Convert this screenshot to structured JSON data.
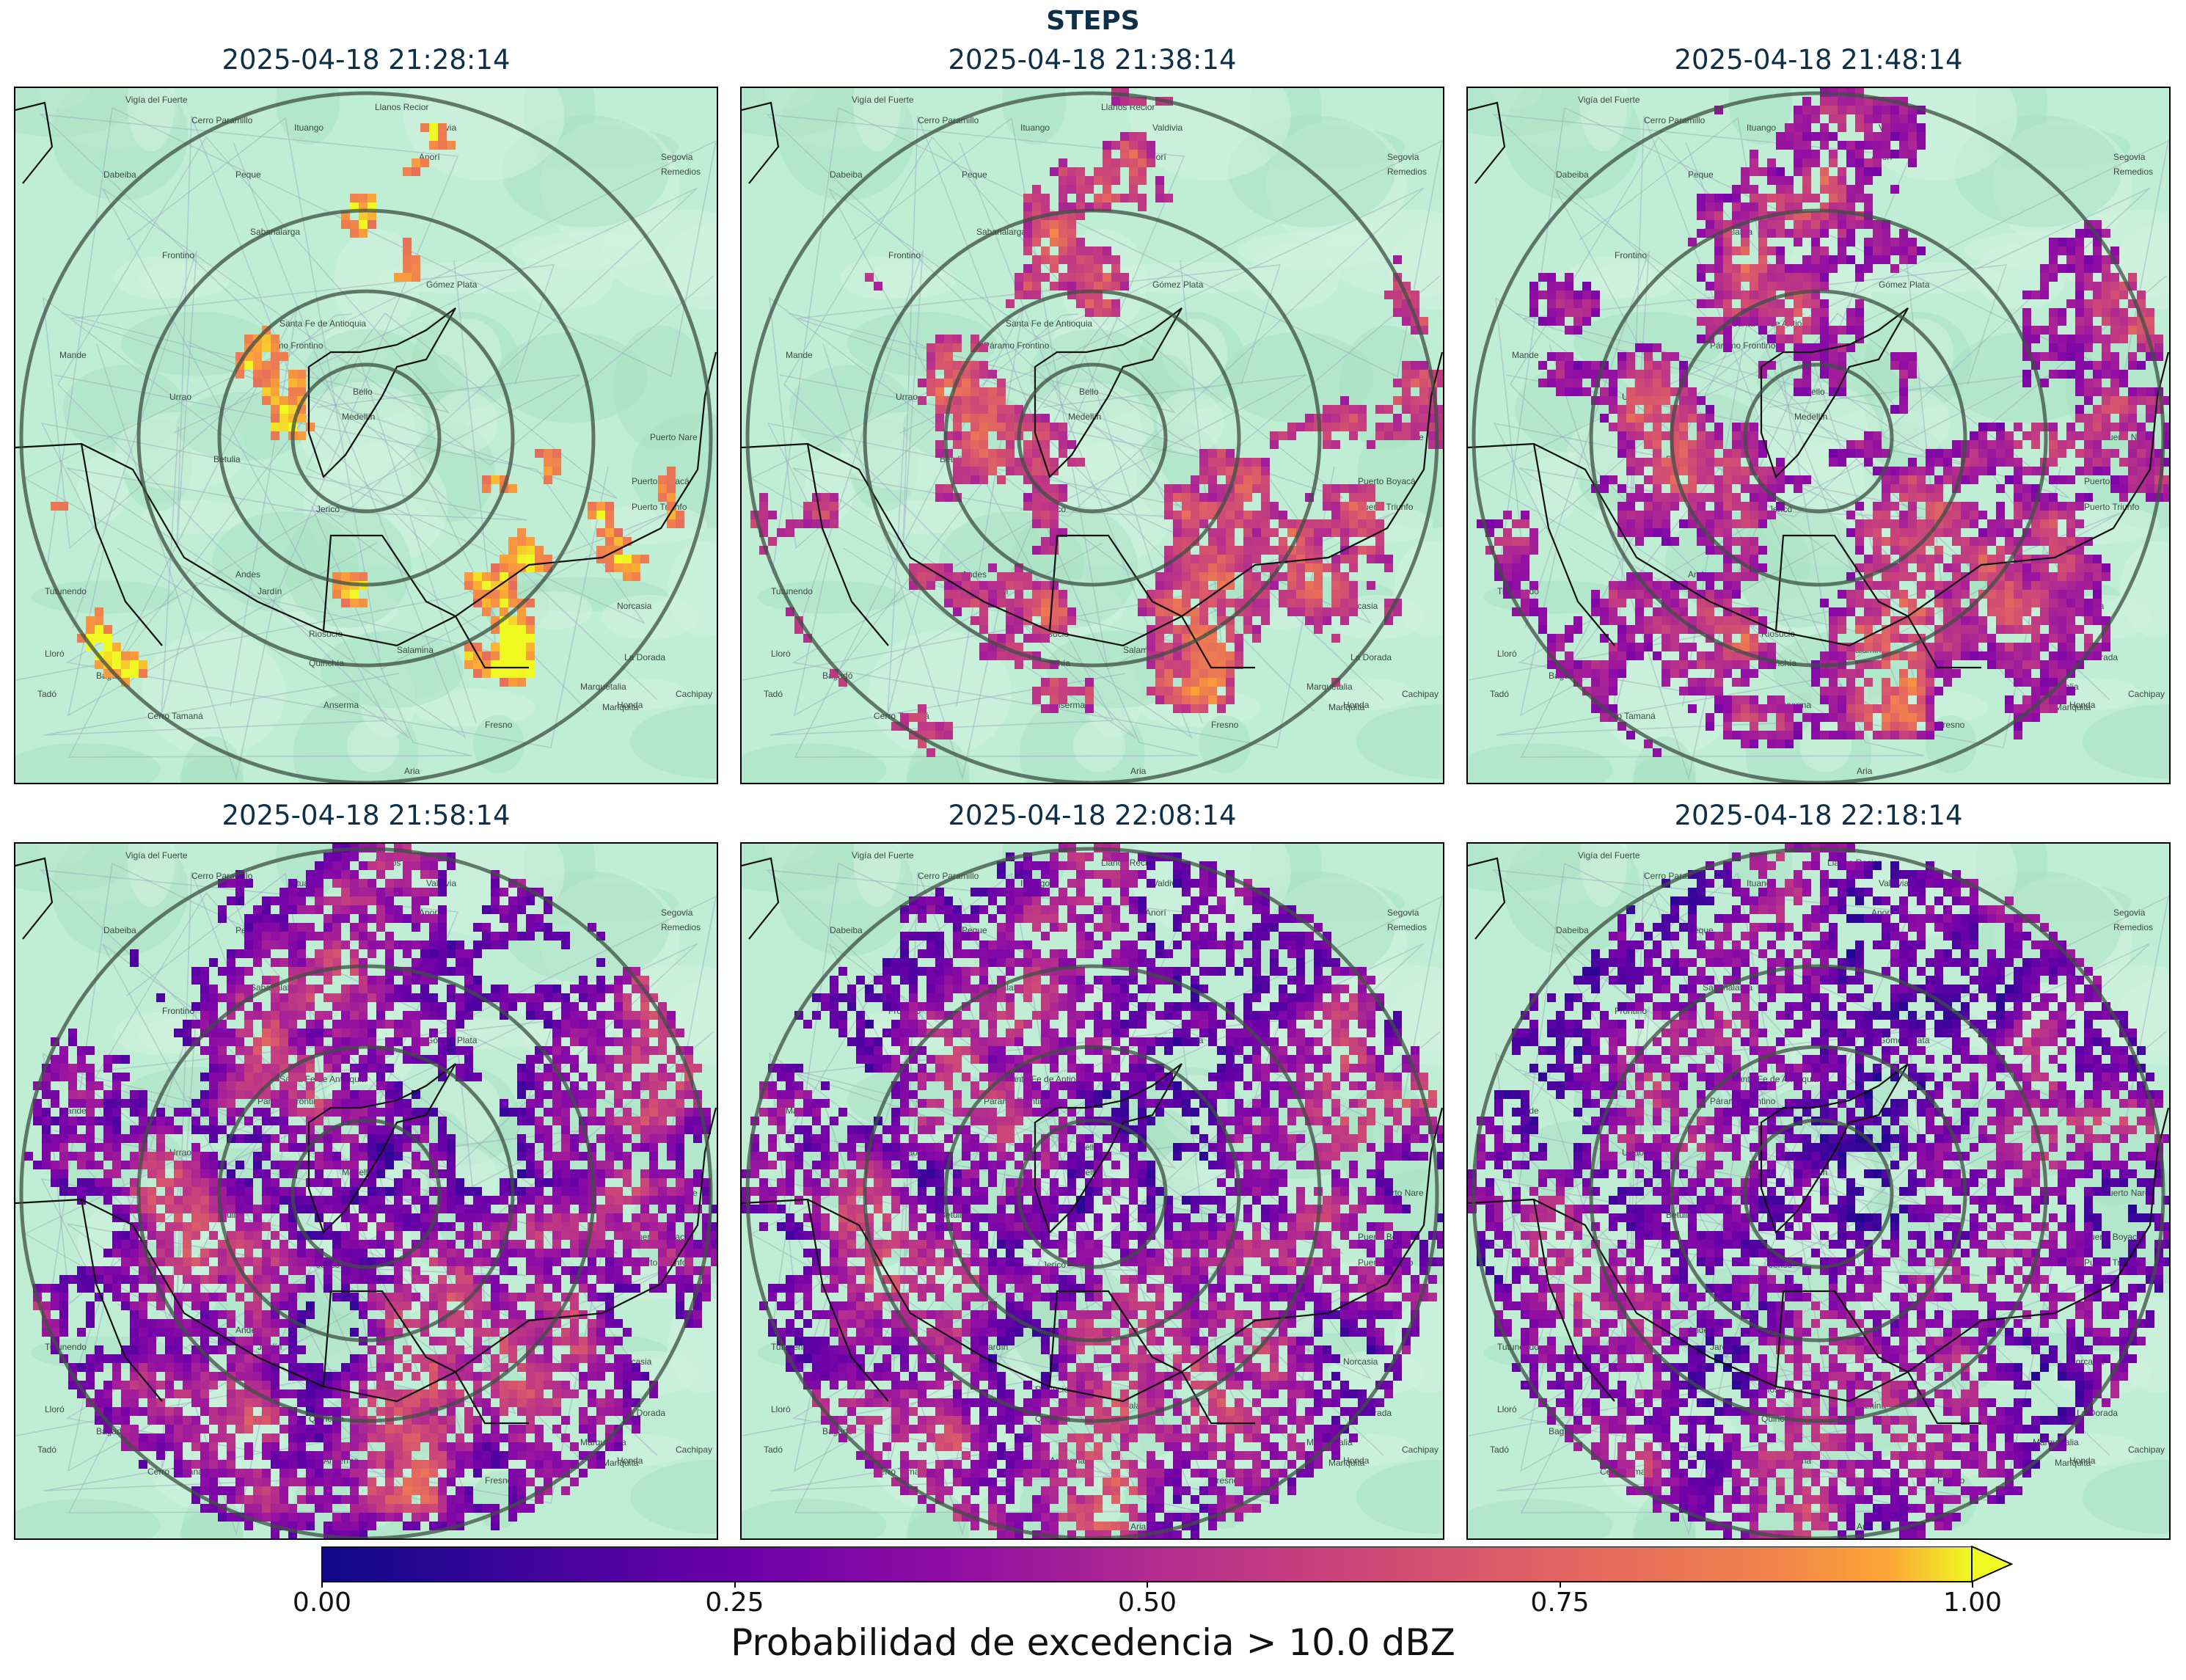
{
  "figure": {
    "suptitle": "STEPS"
  },
  "colorbar": {
    "label": "Probabilidad de excedencia > 10.0 dBZ",
    "ticks": [
      "0.00",
      "0.25",
      "0.50",
      "0.75",
      "1.00"
    ],
    "range": [
      0,
      1
    ],
    "colormap": "plasma",
    "extend": "max"
  },
  "map": {
    "place_labels": [
      "Vigía del Fuerte",
      "Llanos Recior",
      "Valdivia",
      "Cerro Paramillo",
      "Ituango",
      "Segovia",
      "Remedios",
      "Dabeiba",
      "Peque",
      "Anorí",
      "Frontino",
      "Sabanalarga",
      "Gómez Plata",
      "Páramo Frontino",
      "Santa Fe de Antioquia",
      "Mande",
      "Urrao",
      "Bello",
      "Medellín",
      "Puerto Nare",
      "Betulia",
      "Puerto Boyacá",
      "Puerto Triunfo",
      "Jericó",
      "Andes",
      "Jardín",
      "Tutunendo",
      "Norcasia",
      "Riosucio",
      "Salamina",
      "Lloró",
      "Bagadó",
      "La Dorada",
      "Quinchía",
      "Tadó",
      "Cerro Tamaná",
      "Anserma",
      "Mariquita",
      "Honda",
      "Cachipay",
      "Marquetalia",
      "Fresno",
      "Aria"
    ],
    "colors": {
      "land": "#bfeed4",
      "roads": "#9aa8c0",
      "boundary": "#111111",
      "rings": "#3d4f44"
    }
  },
  "chart_data": {
    "type": "heatmap",
    "description_values": "probability field of exceeding 10.0 dBZ, radar centered on Medellín",
    "panels": [
      {
        "title": "2025-04-18 21:28:14",
        "mean_probability_in_cells": 0.85,
        "coverage": "scattered cells"
      },
      {
        "title": "2025-04-18 21:38:14",
        "mean_probability_in_cells": 0.5,
        "coverage": "expanding"
      },
      {
        "title": "2025-04-18 21:48:14",
        "mean_probability_in_cells": 0.35,
        "coverage": "widespread"
      },
      {
        "title": "2025-04-18 21:58:14",
        "mean_probability_in_cells": 0.25,
        "coverage": "widespread"
      },
      {
        "title": "2025-04-18 22:08:14",
        "mean_probability_in_cells": 0.2,
        "coverage": "nearly full disk"
      },
      {
        "title": "2025-04-18 22:18:14",
        "mean_probability_in_cells": 0.15,
        "coverage": "nearly full disk"
      }
    ],
    "range_rings": 4,
    "clim": [
      0,
      1
    ]
  }
}
